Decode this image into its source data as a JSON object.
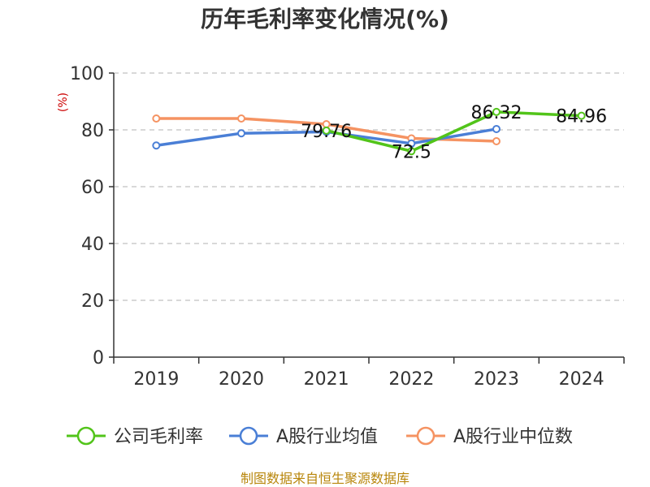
{
  "chart_data": {
    "type": "line",
    "title": "历年毛利率变化情况(%)",
    "ylabel": "(%)",
    "xlabel": "",
    "categories": [
      "2019",
      "2020",
      "2021",
      "2022",
      "2023",
      "2024"
    ],
    "ylim": [
      0,
      100
    ],
    "yticks": [
      0,
      20,
      40,
      60,
      80,
      100
    ],
    "grid": true,
    "legend_position": "bottom",
    "series": [
      {
        "name": "公司毛利率",
        "color": "#52c41a",
        "values": [
          null,
          null,
          79.76,
          72.5,
          86.32,
          84.96
        ]
      },
      {
        "name": "A股行业均值",
        "color": "#4a7fd6",
        "values": [
          74.5,
          78.8,
          79.3,
          75.2,
          80.3,
          null
        ]
      },
      {
        "name": "A股行业中位数",
        "color": "#f59362",
        "values": [
          84.0,
          84.0,
          82.0,
          77.0,
          76.0,
          null
        ]
      }
    ],
    "data_labels": [
      {
        "series": 0,
        "index": 2,
        "text": "79.76"
      },
      {
        "series": 0,
        "index": 3,
        "text": "72.5"
      },
      {
        "series": 0,
        "index": 4,
        "text": "86.32"
      },
      {
        "series": 0,
        "index": 5,
        "text": "84.96"
      }
    ]
  },
  "source": "制图数据来自恒生聚源数据库"
}
